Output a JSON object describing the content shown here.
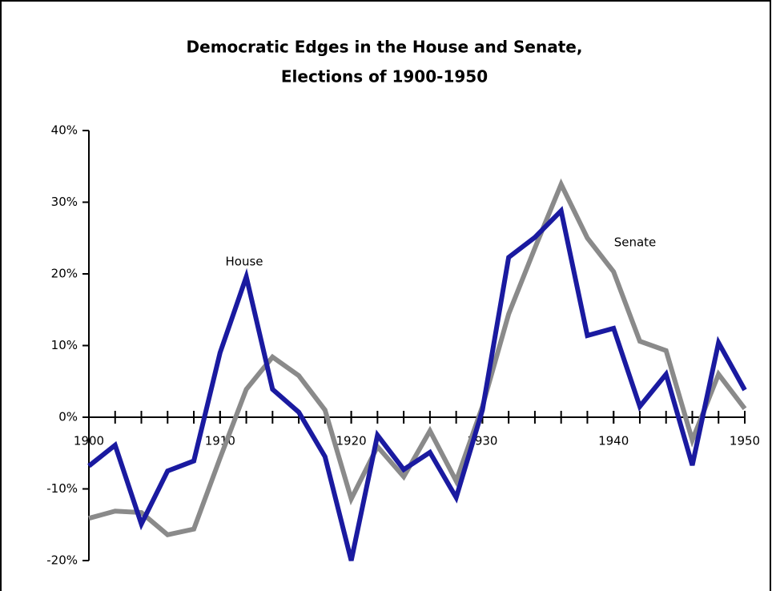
{
  "chart_data": {
    "type": "line",
    "title": [
      "Democratic Edges in the House and Senate,",
      "Elections of 1900-1950"
    ],
    "x": [
      1900,
      1902,
      1904,
      1906,
      1908,
      1910,
      1912,
      1914,
      1916,
      1918,
      1920,
      1922,
      1924,
      1926,
      1928,
      1930,
      1932,
      1934,
      1936,
      1938,
      1940,
      1942,
      1944,
      1946,
      1948,
      1950
    ],
    "series": [
      {
        "name": "Senate",
        "color": "#8a8a8a",
        "values": [
          -14.1,
          -13.1,
          -13.3,
          -16.4,
          -15.6,
          -5.7,
          3.9,
          8.4,
          5.8,
          1.0,
          -11.4,
          -4.1,
          -8.3,
          -1.9,
          -8.9,
          1.5,
          14.4,
          23.6,
          32.5,
          25.0,
          20.3,
          10.6,
          9.3,
          -3.2,
          6.0,
          1.2
        ]
      },
      {
        "name": "House",
        "color": "#1a1aa0",
        "values": [
          -6.8,
          -3.9,
          -14.9,
          -7.5,
          -6.1,
          9.0,
          19.6,
          3.9,
          0.7,
          -5.5,
          -20,
          -2.5,
          -7.3,
          -4.9,
          -11.2,
          1.0,
          22.3,
          25.1,
          28.8,
          11.4,
          12.4,
          1.5,
          6.0,
          -6.7,
          10.4,
          3.8
        ]
      }
    ],
    "xlim": [
      1900,
      1950
    ],
    "xticks": [
      1900,
      1910,
      1920,
      1930,
      1940,
      1950
    ],
    "ylim": [
      -20,
      40
    ],
    "yticks": [
      {
        "value": -20,
        "label": "-20%"
      },
      {
        "value": -10,
        "label": "-10%"
      },
      {
        "value": 0,
        "label": "0%"
      },
      {
        "value": 10,
        "label": "10%"
      },
      {
        "value": 20,
        "label": "20%"
      },
      {
        "value": 30,
        "label": "30%"
      },
      {
        "value": 40,
        "label": "40%"
      }
    ],
    "grid": false
  }
}
